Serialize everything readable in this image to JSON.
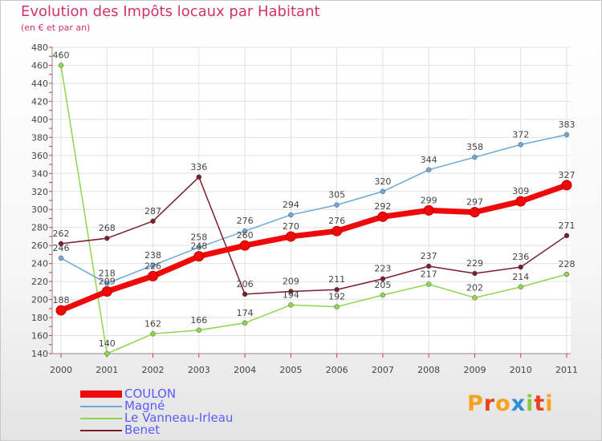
{
  "title": "Evolution des Impôts locaux par Habitant",
  "subtitle": "(en € et par an)",
  "logo": {
    "letters": [
      "P",
      "r",
      "o",
      "x",
      "i",
      "t",
      "i"
    ],
    "colors": [
      "#f6a21c",
      "#e8421e",
      "#f6a21c",
      "#2e8fd6",
      "#8cc63f",
      "#e8421e",
      "#f6a21c"
    ]
  },
  "chart_data": {
    "type": "line",
    "categories": [
      "2000",
      "2001",
      "2002",
      "2003",
      "2004",
      "2005",
      "2006",
      "2007",
      "2008",
      "2009",
      "2010",
      "2011"
    ],
    "ylim": [
      140,
      480
    ],
    "yticks": [
      "140",
      "160",
      "180",
      "200",
      "220",
      "240",
      "260",
      "280",
      "300",
      "320",
      "340",
      "360",
      "380",
      "400",
      "420",
      "440",
      "460",
      "480"
    ],
    "grid": true,
    "legend_position": "bottom-left",
    "series": [
      {
        "name": "Le Vanneau-Irleau",
        "color": "#8fd64e",
        "values": [
          460,
          140,
          162,
          166,
          174,
          194,
          192,
          205,
          217,
          202,
          214,
          228
        ]
      },
      {
        "name": "Magné",
        "color": "#6fa8d6",
        "values": [
          246,
          218,
          238,
          258,
          276,
          294,
          305,
          320,
          344,
          358,
          372,
          383
        ]
      },
      {
        "name": "Benet",
        "color": "#7a1e2c",
        "values": [
          262,
          268,
          287,
          336,
          206,
          209,
          211,
          223,
          237,
          229,
          236,
          271
        ]
      },
      {
        "name": "COULON",
        "color": "#ee0a0a",
        "values": [
          188,
          209,
          226,
          248,
          260,
          270,
          276,
          292,
          299,
          297,
          309,
          327
        ]
      }
    ],
    "legend": [
      "COULON",
      "Magné",
      "Le Vanneau-Irleau",
      "Benet"
    ]
  }
}
